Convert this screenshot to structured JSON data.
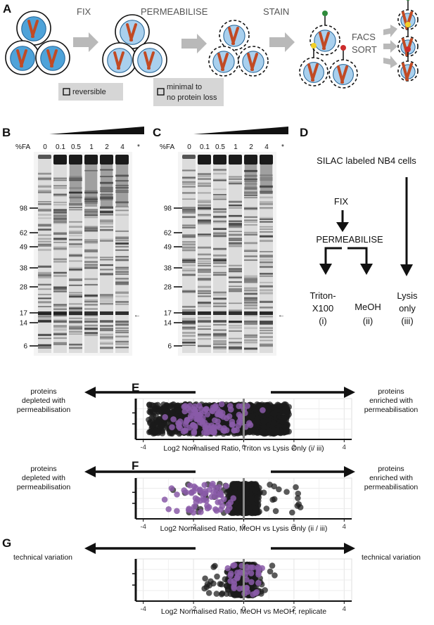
{
  "panels": {
    "a": "A",
    "b": "B",
    "c": "C",
    "d": "D",
    "e": "E",
    "f": "F",
    "g": "G"
  },
  "workflow_a": {
    "steps": [
      "FIX",
      "PERMEABILISE",
      "STAIN"
    ],
    "facs": [
      "FACS",
      "SORT"
    ],
    "notes": {
      "reversible": "reversible",
      "minimal_1": "minimal to",
      "minimal_2": "no protein loss"
    }
  },
  "gels": {
    "fa_label": "%FA",
    "concentrations": [
      "0",
      "0.1",
      "0.5",
      "1",
      "2",
      "4"
    ],
    "markers": [
      "98",
      "62",
      "49",
      "38",
      "28",
      "17",
      "14",
      "6"
    ],
    "asterisk": "*",
    "arrow": "←"
  },
  "workflow_d": {
    "title": "SILAC labeled NB4 cells",
    "fix": "FIX",
    "perm": "PERMEABILISE",
    "outcomes": [
      {
        "line1": "Triton-",
        "line2": "X100",
        "roman": "(i)"
      },
      {
        "line1": "MeOH",
        "line2": "",
        "roman": "(ii)"
      },
      {
        "line1": "Lysis",
        "line2": "only",
        "roman": "(iii)"
      }
    ]
  },
  "annotations": {
    "depleted": [
      "proteins",
      "depleted with",
      "permeabilisation"
    ],
    "enriched": [
      "proteins",
      "enriched with",
      "permeabilisation"
    ],
    "technical": "technical variation"
  },
  "chart_data": [
    {
      "type": "scatter",
      "panel": "E",
      "xlabel": "Log2 Normalised Ratio, Triton vs Lysis Only (i/ iii)",
      "xlim": [
        -4.3,
        4.3
      ],
      "xticks": [
        -4,
        -2,
        0,
        2,
        4
      ],
      "series": [
        {
          "color": "#1a1a1a",
          "x_range": [
            -3.8,
            1.8
          ],
          "points": 1350
        },
        {
          "color": "#8a5aa8",
          "x_range": [
            -3.8,
            1.2
          ],
          "points": 120
        }
      ]
    },
    {
      "type": "scatter",
      "panel": "F",
      "xlabel": "Log2 Normalised Ratio, MeOH vs Lysis Only (ii / iii)",
      "xlim": [
        -4.3,
        4.3
      ],
      "xticks": [
        -4,
        -2,
        0,
        2,
        4
      ],
      "series": [
        {
          "color": "#1a1a1a",
          "x_range": [
            -3.2,
            2.3
          ],
          "points": 1000
        },
        {
          "color": "#8a5aa8",
          "x_range": [
            -3.8,
            0.6
          ],
          "points": 60
        }
      ]
    },
    {
      "type": "scatter",
      "panel": "G",
      "xlabel": "Log2 Normalised Ratio, MeOH vs MeOH, replicate",
      "xlim": [
        -4.3,
        4.3
      ],
      "xticks": [
        -4,
        -2,
        0,
        2,
        4
      ],
      "series": [
        {
          "color": "#1a1a1a",
          "x_range": [
            -2.0,
            1.3
          ],
          "points": 700
        },
        {
          "color": "#8a5aa8",
          "x_range": [
            -1.0,
            1.0
          ],
          "points": 40
        }
      ]
    }
  ],
  "colors": {
    "accent": "#4fa3d9",
    "chromosome": "#c14a24",
    "arrow_grey": "#b9b9b9",
    "purple": "#8a5aa8"
  }
}
